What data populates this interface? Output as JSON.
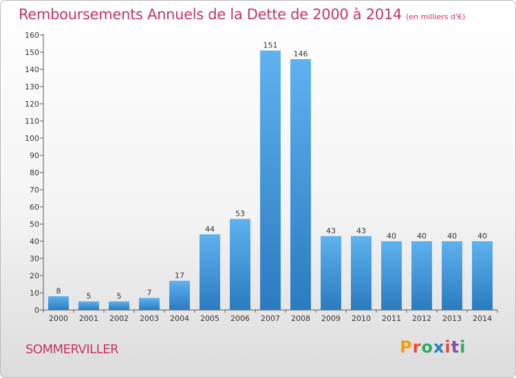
{
  "header": {
    "title": "Remboursements Annuels de la Dette de 2000 à 2014",
    "unit": "(en milliers d'€)"
  },
  "footer": {
    "commune": "SOMMERVILLER",
    "logo": [
      "P",
      "r",
      "o",
      "x",
      "i",
      "t",
      "i"
    ]
  },
  "colors": {
    "title": "#c2365f",
    "bar_top": "#5eb2ef",
    "bar_bottom": "#2a7bbf",
    "logo": [
      "#f39c12",
      "#e74c3c",
      "#27ae60",
      "#2980b9",
      "#e74c3c",
      "#8e44ad",
      "#27ae60"
    ]
  },
  "chart_data": {
    "type": "bar",
    "title": "Remboursements Annuels de la Dette de 2000 à 2014",
    "xlabel": "",
    "ylabel": "",
    "categories": [
      "2000",
      "2001",
      "2002",
      "2003",
      "2004",
      "2005",
      "2006",
      "2007",
      "2008",
      "2009",
      "2010",
      "2011",
      "2012",
      "2013",
      "2014"
    ],
    "values": [
      8,
      5,
      5,
      7,
      17,
      44,
      53,
      151,
      146,
      43,
      43,
      40,
      40,
      40,
      40
    ],
    "ylim": [
      0,
      160
    ],
    "yticks": [
      0,
      10,
      20,
      30,
      40,
      50,
      60,
      70,
      80,
      90,
      100,
      110,
      120,
      130,
      140,
      150,
      160
    ],
    "grid": false,
    "data_labels": true
  }
}
